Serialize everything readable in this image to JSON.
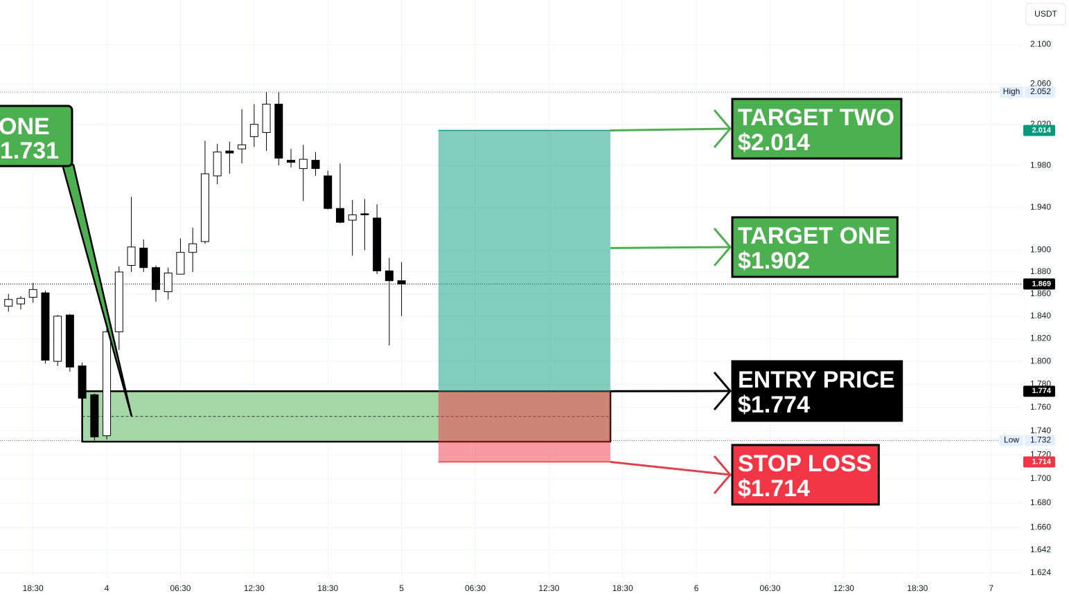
{
  "chart_data": {
    "type": "candlestick",
    "currency": "USDT",
    "log_scale": true,
    "grid": true,
    "up_color": "#ffffff",
    "down_color": "#000000",
    "x": [
      -8,
      -7,
      -6,
      -5,
      -4,
      -3,
      -2,
      -1,
      0,
      1,
      2,
      3,
      4,
      5,
      6,
      7,
      8,
      9,
      10,
      11,
      12,
      13,
      14,
      15,
      16,
      17,
      18,
      19,
      20,
      21,
      22,
      23,
      24
    ],
    "open": [
      1.849,
      1.851,
      1.857,
      1.861,
      1.8,
      1.841,
      1.796,
      1.771,
      1.736,
      1.826,
      1.886,
      1.902,
      1.884,
      1.862,
      1.878,
      1.898,
      1.908,
      1.97,
      1.994,
      1.996,
      2.008,
      2.012,
      2.04,
      1.985,
      1.977,
      1.985,
      1.97,
      1.939,
      1.928,
      1.934,
      1.93,
      1.881,
      1.872
    ],
    "high": [
      1.86,
      1.858,
      1.87,
      1.863,
      1.841,
      1.842,
      1.799,
      1.772,
      1.829,
      1.885,
      1.95,
      1.91,
      1.886,
      1.884,
      1.911,
      1.921,
      2.004,
      2.001,
      2.003,
      2.035,
      2.04,
      2.052,
      2.052,
      1.996,
      2.0,
      1.993,
      1.975,
      1.982,
      1.947,
      1.948,
      1.943,
      1.893,
      1.889
    ],
    "low": [
      1.844,
      1.846,
      1.852,
      1.798,
      1.796,
      1.791,
      1.765,
      1.732,
      1.733,
      1.81,
      1.88,
      1.88,
      1.853,
      1.855,
      1.878,
      1.88,
      1.906,
      1.962,
      1.972,
      1.982,
      1.998,
      1.994,
      1.98,
      1.978,
      1.946,
      1.97,
      1.938,
      1.925,
      1.895,
      1.9,
      1.878,
      1.814,
      1.84
    ],
    "close": [
      1.855,
      1.856,
      1.864,
      1.801,
      1.84,
      1.795,
      1.768,
      1.735,
      1.826,
      1.88,
      1.903,
      1.884,
      1.864,
      1.879,
      1.898,
      1.906,
      1.972,
      1.993,
      1.992,
      2.0,
      2.02,
      2.04,
      1.987,
      1.983,
      1.986,
      1.977,
      1.939,
      1.926,
      1.933,
      1.933,
      1.881,
      1.872,
      1.869
    ],
    "xlim": [
      -8.69,
      74.5
    ],
    "xticks": [
      {
        "value": -6,
        "label": "18:30"
      },
      {
        "value": 0,
        "label": "4"
      },
      {
        "value": 6,
        "label": "06:30"
      },
      {
        "value": 12,
        "label": "12:30"
      },
      {
        "value": 18,
        "label": "18:30"
      },
      {
        "value": 24,
        "label": "5"
      },
      {
        "value": 30,
        "label": "06:30"
      },
      {
        "value": 36,
        "label": "12:30"
      },
      {
        "value": 42,
        "label": "18:30"
      },
      {
        "value": 48,
        "label": "6"
      },
      {
        "value": 54,
        "label": "06:30"
      },
      {
        "value": 60,
        "label": "12:30"
      },
      {
        "value": 66,
        "label": "18:30"
      },
      {
        "value": 72,
        "label": "7"
      }
    ],
    "ylim": [
      1.62,
      2.146
    ],
    "yticks": [
      {
        "value": 2.1,
        "label": "2.100"
      },
      {
        "value": 2.06,
        "label": "2.060"
      },
      {
        "value": 2.02,
        "label": "2.020"
      },
      {
        "value": 1.98,
        "label": "1.980"
      },
      {
        "value": 1.94,
        "label": "1.940"
      },
      {
        "value": 1.9,
        "label": "1.900"
      },
      {
        "value": 1.88,
        "label": "1.880"
      },
      {
        "value": 1.86,
        "label": "1.860"
      },
      {
        "value": 1.84,
        "label": "1.840"
      },
      {
        "value": 1.82,
        "label": "1.820"
      },
      {
        "value": 1.8,
        "label": "1.800"
      },
      {
        "value": 1.78,
        "label": "1.780"
      },
      {
        "value": 1.76,
        "label": "1.760"
      },
      {
        "value": 1.74,
        "label": "1.740"
      },
      {
        "value": 1.72,
        "label": "1.720"
      },
      {
        "value": 1.7,
        "label": "1.700"
      },
      {
        "value": 1.68,
        "label": "1.680"
      },
      {
        "value": 1.66,
        "label": "1.660"
      },
      {
        "value": 1.642,
        "label": "1.642"
      },
      {
        "value": 1.624,
        "label": "1.624"
      }
    ],
    "markers": [
      {
        "name": "High",
        "value": 2.052
      },
      {
        "name": "Low",
        "value": 1.732
      }
    ],
    "last_price": 1.869,
    "price_tags": [
      {
        "value": 2.014,
        "color": "#089981"
      },
      {
        "value": 1.869,
        "color": "#000000"
      },
      {
        "value": 1.774,
        "color": "#000000"
      },
      {
        "value": 1.714,
        "color": "#f23645"
      }
    ],
    "zone": {
      "top": 1.774,
      "bottom": 1.731,
      "start": -2,
      "end": 41,
      "color": "#a5d6a7"
    },
    "position": {
      "entry": 1.774,
      "target": 2.014,
      "stop": 1.714,
      "start": 27,
      "end": 41,
      "profit_color": "#089981",
      "loss_color": "#f23645"
    },
    "callouts": [
      {
        "title": "TARGET TWO",
        "price": {
          "value": 2.014,
          "label": "$2.014"
        },
        "color": "#4caf50"
      },
      {
        "title": "TARGET ONE",
        "price": {
          "value": 1.902,
          "label": "$1.902"
        },
        "color": "#4caf50"
      },
      {
        "title": "ENTRY PRICE",
        "price": {
          "value": 1.774,
          "label": "$1.774"
        },
        "color": "#000000"
      },
      {
        "title": "STOP LOSS",
        "price": {
          "value": 1.714,
          "label": "$1.714"
        },
        "color": "#f23645"
      }
    ],
    "zone_callout": {
      "title": "ONE",
      "price": 1.731,
      "color": "#4caf50"
    }
  }
}
